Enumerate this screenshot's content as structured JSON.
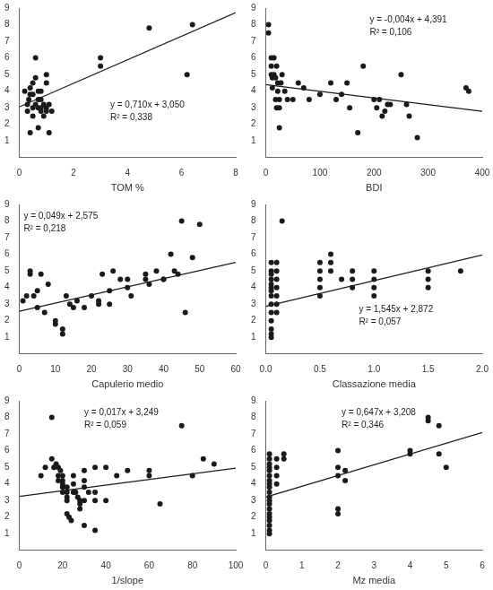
{
  "chart_data": [
    {
      "type": "scatter",
      "xlabel": "TOM %",
      "xlim": [
        0,
        8
      ],
      "ylim": [
        0,
        9
      ],
      "xticks": [
        0,
        2,
        4,
        6,
        8
      ],
      "yticks": [
        1,
        2,
        3,
        4,
        5,
        6,
        7,
        8,
        9
      ],
      "grid": false,
      "annotations": [
        "y = 0,710x + 3,050",
        "R² = 0,338"
      ],
      "series": [
        {
          "type": "scatter",
          "color": "#1a1a1a",
          "x": [
            0.2,
            0.3,
            0.3,
            0.35,
            0.4,
            0.4,
            0.4,
            0.5,
            0.5,
            0.5,
            0.5,
            0.6,
            0.6,
            0.6,
            0.7,
            0.7,
            0.7,
            0.7,
            0.8,
            0.8,
            0.8,
            0.8,
            0.9,
            0.9,
            1.0,
            1.0,
            1.0,
            1.0,
            1.1,
            1.1,
            1.2,
            3.0,
            3.0,
            4.8,
            6.2,
            6.4
          ],
          "values": [
            4.0,
            3.2,
            2.8,
            3.5,
            3.8,
            4.2,
            1.5,
            2.5,
            3.0,
            4.5,
            3.8,
            6.0,
            3.2,
            4.8,
            3.5,
            4.0,
            1.8,
            3.0,
            2.8,
            3.5,
            3.0,
            4.0,
            3.2,
            2.5,
            2.8,
            4.5,
            3.0,
            5.0,
            1.5,
            3.2,
            2.8,
            5.5,
            6.0,
            7.8,
            5.0,
            8.0
          ]
        },
        {
          "type": "line",
          "color": "#1a1a1a",
          "x": [
            0,
            8
          ],
          "values": [
            3.05,
            8.73
          ]
        }
      ]
    },
    {
      "type": "scatter",
      "xlabel": "BDI",
      "xlim": [
        0,
        400
      ],
      "ylim": [
        0,
        9
      ],
      "xticks": [
        0,
        100,
        200,
        300,
        400
      ],
      "yticks": [
        1,
        2,
        3,
        4,
        5,
        6,
        7,
        8,
        9
      ],
      "grid": false,
      "annotations": [
        "y = -0,004x + 4,391",
        "R² = 0,106"
      ],
      "series": [
        {
          "type": "scatter",
          "color": "#1a1a1a",
          "x": [
            5,
            5,
            10,
            10,
            10,
            12,
            12,
            15,
            15,
            18,
            18,
            20,
            20,
            22,
            22,
            25,
            25,
            25,
            28,
            30,
            35,
            40,
            50,
            60,
            70,
            80,
            100,
            120,
            130,
            140,
            150,
            155,
            170,
            180,
            200,
            205,
            210,
            215,
            220,
            225,
            230,
            250,
            260,
            265,
            280,
            370,
            375
          ],
          "values": [
            8.0,
            7.5,
            6.0,
            5.5,
            5.0,
            4.8,
            4.2,
            6.0,
            5.0,
            4.8,
            3.5,
            3.0,
            5.5,
            4.5,
            4.0,
            3.5,
            3.0,
            1.8,
            4.5,
            5.0,
            4.0,
            3.5,
            3.5,
            4.5,
            4.2,
            3.5,
            3.8,
            4.5,
            3.5,
            3.8,
            4.5,
            3.0,
            1.5,
            5.5,
            3.5,
            3.0,
            3.5,
            2.5,
            2.8,
            3.2,
            3.2,
            5.0,
            3.2,
            2.5,
            1.2,
            4.2,
            4.0
          ]
        },
        {
          "type": "line",
          "color": "#1a1a1a",
          "x": [
            0,
            400
          ],
          "values": [
            4.391,
            2.791
          ]
        }
      ]
    },
    {
      "type": "scatter",
      "xlabel": "Capulerio medio",
      "xlim": [
        0,
        60
      ],
      "ylim": [
        0,
        9
      ],
      "xticks": [
        0,
        10,
        20,
        30,
        40,
        50,
        60
      ],
      "yticks": [
        1,
        2,
        3,
        4,
        5,
        6,
        7,
        8,
        9
      ],
      "grid": false,
      "annotations": [
        "y = 0,049x + 2,575",
        "R² = 0,218"
      ],
      "series": [
        {
          "type": "scatter",
          "color": "#1a1a1a",
          "x": [
            1,
            2,
            3,
            3,
            4,
            5,
            5,
            6,
            7,
            8,
            10,
            10,
            12,
            12,
            13,
            14,
            15,
            16,
            18,
            20,
            22,
            22,
            23,
            25,
            25,
            26,
            28,
            30,
            30,
            31,
            35,
            35,
            36,
            38,
            40,
            40,
            42,
            43,
            44,
            45,
            46,
            48,
            50
          ],
          "values": [
            3.2,
            3.5,
            5.0,
            4.8,
            3.5,
            2.8,
            3.8,
            4.8,
            2.5,
            4.2,
            2.0,
            1.8,
            1.5,
            1.2,
            3.5,
            3.0,
            2.8,
            3.2,
            2.8,
            3.5,
            3.0,
            3.2,
            4.8,
            3.8,
            3.0,
            5.0,
            4.5,
            4.5,
            4.0,
            3.5,
            4.5,
            4.8,
            4.2,
            5.0,
            4.5,
            4.5,
            6.0,
            5.0,
            4.8,
            8.0,
            2.5,
            5.8,
            7.8
          ]
        },
        {
          "type": "line",
          "color": "#1a1a1a",
          "x": [
            0,
            60
          ],
          "values": [
            2.575,
            5.515
          ]
        }
      ]
    },
    {
      "type": "scatter",
      "xlabel": "Classazione media",
      "xlim": [
        0,
        2
      ],
      "ylim": [
        0,
        9
      ],
      "xticks": [
        {
          "value": 0,
          "label": "0.0"
        },
        {
          "value": 0.5,
          "label": "0.5"
        },
        {
          "value": 1,
          "label": "1.0"
        },
        {
          "value": 1.5,
          "label": "1.5"
        },
        {
          "value": 2,
          "label": "2.0"
        }
      ],
      "yticks": [
        1,
        2,
        3,
        4,
        5,
        6,
        7,
        8,
        9
      ],
      "grid": false,
      "annotations": [
        "y = 1,545x + 2,872",
        "R² = 0,057"
      ],
      "series": [
        {
          "type": "scatter",
          "color": "#1a1a1a",
          "x": [
            0.05,
            0.05,
            0.05,
            0.05,
            0.05,
            0.05,
            0.05,
            0.05,
            0.05,
            0.05,
            0.05,
            0.05,
            0.05,
            0.05,
            0.1,
            0.1,
            0.1,
            0.1,
            0.1,
            0.1,
            0.1,
            0.15,
            0.5,
            0.5,
            0.5,
            0.5,
            0.5,
            0.6,
            0.6,
            0.6,
            0.7,
            0.8,
            0.8,
            0.8,
            1.0,
            1.0,
            1.0,
            1.0,
            1.5,
            1.5,
            1.5,
            1.8
          ],
          "values": [
            5.5,
            5.0,
            4.8,
            4.5,
            4.2,
            4.0,
            3.8,
            3.5,
            3.0,
            2.5,
            2.0,
            1.5,
            1.2,
            1.0,
            5.5,
            5.0,
            4.5,
            4.0,
            3.5,
            3.0,
            2.5,
            8.0,
            5.5,
            5.0,
            4.5,
            4.0,
            3.5,
            6.0,
            5.5,
            5.0,
            4.5,
            5.0,
            4.5,
            4.0,
            5.0,
            4.5,
            4.0,
            3.5,
            5.0,
            4.5,
            4.0,
            5.0
          ]
        },
        {
          "type": "line",
          "color": "#1a1a1a",
          "x": [
            0,
            2
          ],
          "values": [
            2.872,
            5.962
          ]
        }
      ]
    },
    {
      "type": "scatter",
      "xlabel": "1/slope",
      "xlim": [
        0,
        100
      ],
      "ylim": [
        0,
        9
      ],
      "xticks": [
        0,
        20,
        40,
        60,
        80,
        100
      ],
      "yticks": [
        1,
        2,
        3,
        4,
        5,
        6,
        7,
        8,
        9
      ],
      "grid": false,
      "annotations": [
        "y = 0,017x + 3,249",
        "R² = 0,059"
      ],
      "series": [
        {
          "type": "scatter",
          "color": "#1a1a1a",
          "x": [
            10,
            12,
            15,
            15,
            16,
            17,
            18,
            18,
            18,
            19,
            20,
            20,
            20,
            20,
            20,
            22,
            22,
            22,
            22,
            22,
            23,
            24,
            25,
            25,
            25,
            26,
            27,
            28,
            28,
            28,
            30,
            30,
            30,
            30,
            30,
            32,
            35,
            35,
            35,
            35,
            40,
            40,
            45,
            50,
            60,
            60,
            65,
            75,
            80,
            85,
            90
          ],
          "values": [
            4.5,
            5.0,
            8.0,
            5.5,
            5.0,
            5.2,
            5.0,
            4.5,
            4.2,
            4.8,
            4.5,
            4.2,
            4.0,
            3.8,
            3.5,
            3.8,
            3.5,
            3.2,
            3.0,
            2.2,
            2.0,
            1.8,
            4.5,
            4.0,
            3.5,
            3.5,
            3.2,
            3.0,
            2.8,
            2.5,
            4.8,
            4.2,
            3.8,
            3.0,
            1.5,
            3.5,
            5.0,
            3.5,
            3.0,
            1.2,
            5.0,
            3.0,
            4.5,
            4.8,
            4.8,
            4.5,
            2.8,
            7.5,
            4.5,
            5.5,
            5.2
          ]
        },
        {
          "type": "line",
          "color": "#1a1a1a",
          "x": [
            0,
            100
          ],
          "values": [
            3.249,
            4.949
          ]
        }
      ]
    },
    {
      "type": "scatter",
      "xlabel": "Mz media",
      "xlim": [
        0,
        6
      ],
      "ylim": [
        0,
        9
      ],
      "xticks": [
        0,
        1,
        2,
        3,
        4,
        5,
        6
      ],
      "yticks": [
        1,
        2,
        3,
        4,
        5,
        6,
        7,
        8,
        9
      ],
      "grid": false,
      "annotations": [
        "y = 0,647x + 3,208",
        "R² = 0,346"
      ],
      "series": [
        {
          "type": "scatter",
          "color": "#1a1a1a",
          "x": [
            0.1,
            0.1,
            0.1,
            0.1,
            0.1,
            0.1,
            0.1,
            0.1,
            0.1,
            0.1,
            0.1,
            0.1,
            0.1,
            0.1,
            0.1,
            0.1,
            0.1,
            0.1,
            0.1,
            0.1,
            0.3,
            0.3,
            0.3,
            0.3,
            0.5,
            0.5,
            2.0,
            2.0,
            2.0,
            2.0,
            2.0,
            2.2,
            2.2,
            4.0,
            4.0,
            4.5,
            4.5,
            4.8,
            4.8,
            5.0
          ],
          "values": [
            5.8,
            5.5,
            5.2,
            5.0,
            4.8,
            4.5,
            4.2,
            4.0,
            3.8,
            3.5,
            3.2,
            3.0,
            2.8,
            2.5,
            2.2,
            2.0,
            1.8,
            1.5,
            1.2,
            1.0,
            5.5,
            5.0,
            4.5,
            4.0,
            5.8,
            5.5,
            6.0,
            5.0,
            4.5,
            2.5,
            2.2,
            4.8,
            4.2,
            6.0,
            5.8,
            7.8,
            8.0,
            7.5,
            5.8,
            5.0
          ]
        },
        {
          "type": "line",
          "color": "#1a1a1a",
          "x": [
            0,
            6
          ],
          "values": [
            3.208,
            7.09
          ]
        }
      ]
    }
  ]
}
